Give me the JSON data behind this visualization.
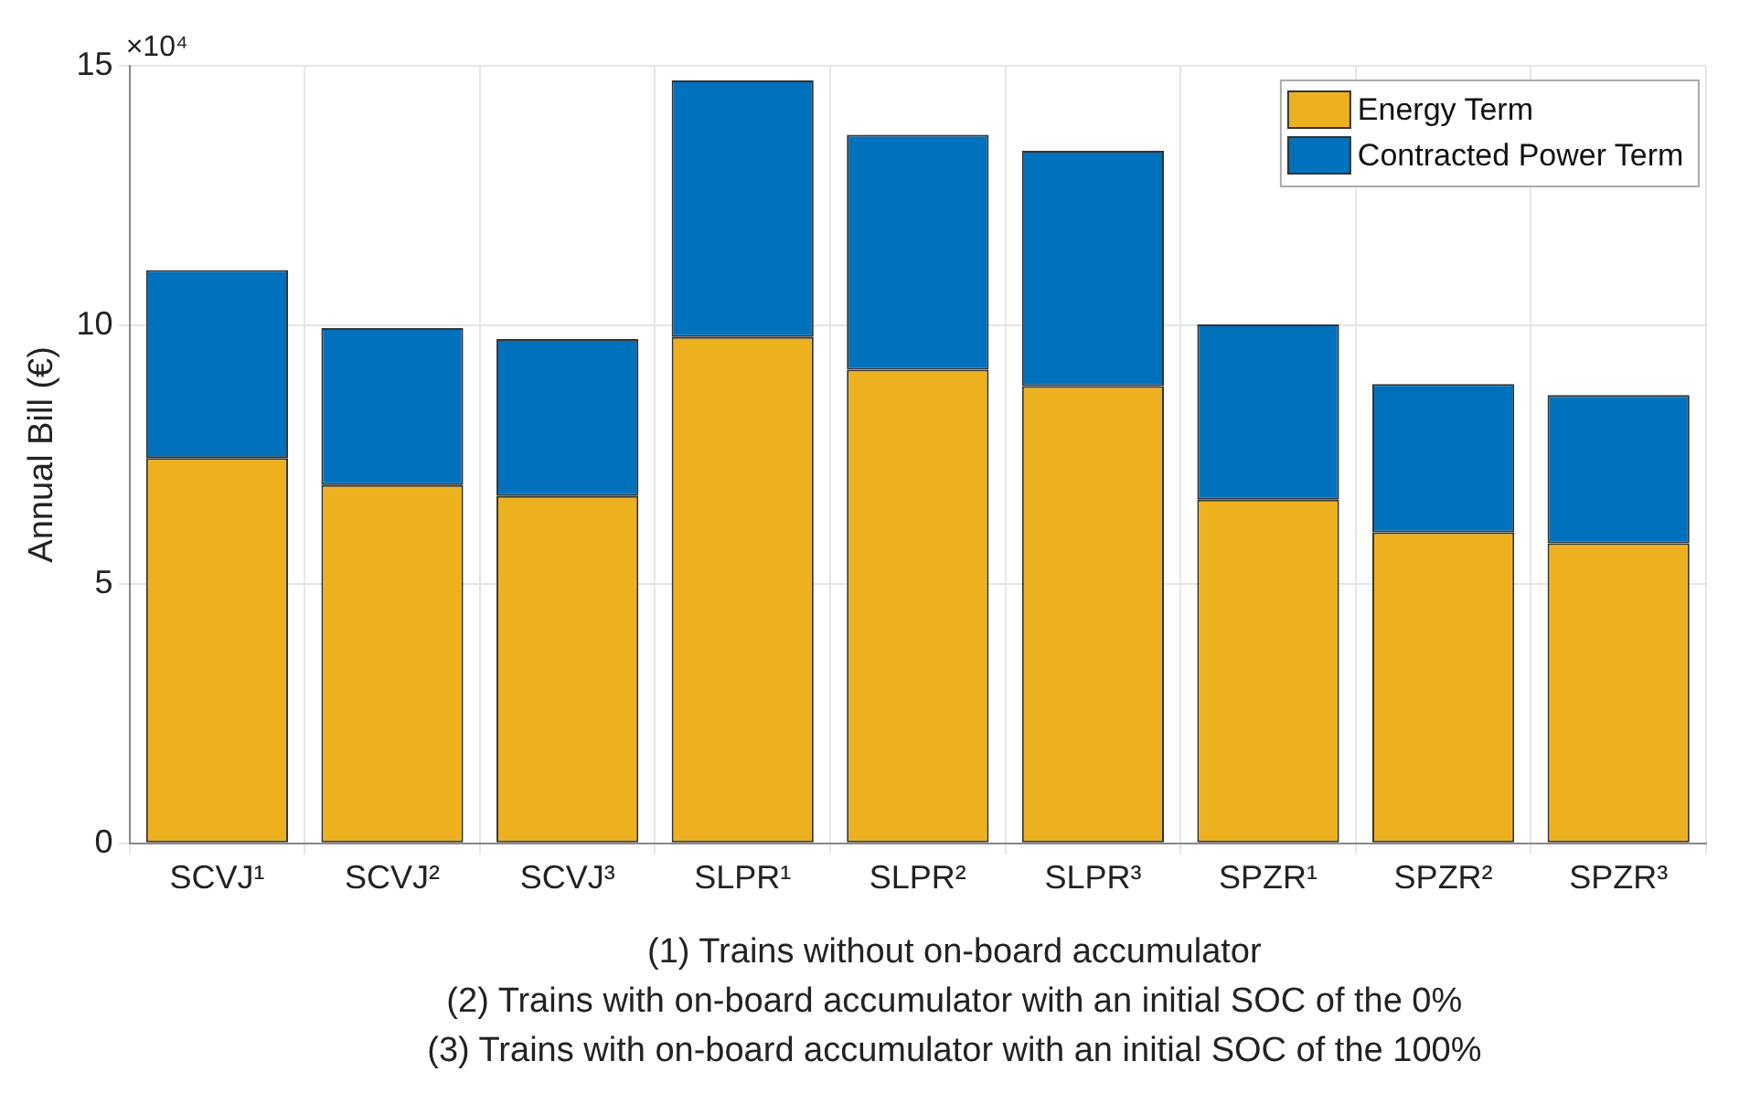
{
  "chart_data": {
    "type": "bar",
    "stacked": true,
    "categories": [
      "SCVJ¹",
      "SCVJ²",
      "SCVJ³",
      "SLPR¹",
      "SLPR²",
      "SLPR³",
      "SPZR¹",
      "SPZR²",
      "SPZR³"
    ],
    "series": [
      {
        "name": "Energy Term",
        "color": "#edb120",
        "values": [
          7.43,
          6.91,
          6.7,
          9.77,
          9.14,
          8.82,
          6.63,
          6.0,
          5.79
        ]
      },
      {
        "name": "Contracted Power Term",
        "color": "#0072bd",
        "values": [
          3.63,
          3.03,
          3.03,
          4.95,
          4.53,
          4.54,
          3.38,
          2.86,
          2.86
        ]
      }
    ],
    "ylabel": "Annual Bill (€)",
    "ylim": [
      0,
      15
    ],
    "yticks": [
      0,
      5,
      10,
      15
    ],
    "grid": true,
    "legend": "top right",
    "annotations": [
      "×10⁴",
      "(1) Trains without on-board accumulator",
      "(2) Trains with on-board accumulator with an initial SOC of the 0%",
      "(3) Trains with on-board accumulator with an initial SOC of the 100%"
    ]
  }
}
